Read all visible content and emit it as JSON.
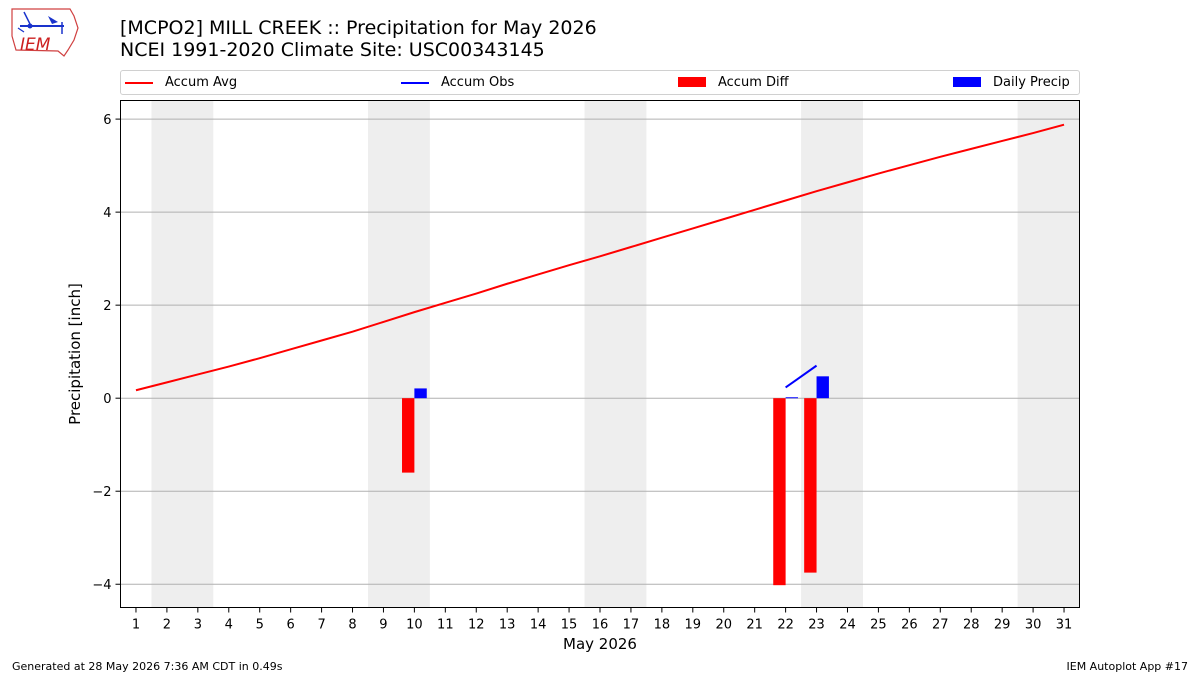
{
  "header": {
    "title_line1": "[MCPO2] MILL CREEK :: Precipitation for May 2026",
    "title_line2": "NCEI 1991-2020 Climate Site: USC00343145",
    "logo_text": "IEM"
  },
  "legend": {
    "accum_avg": "Accum Avg",
    "accum_obs": "Accum Obs",
    "accum_diff": "Accum Diff",
    "daily_precip": "Daily Precip"
  },
  "footer": {
    "left": "Generated at 28 May 2026 7:36 AM CDT in 0.49s",
    "right": "IEM Autoplot App #17"
  },
  "colors": {
    "avg": "#ff0000",
    "obs": "#0000ff",
    "diff": "#ff0000",
    "daily": "#0000ff",
    "weekend_band": "#eeeeee",
    "grid": "#b0b0b0"
  },
  "chart_data": {
    "type": "bar",
    "xlabel": "May 2026",
    "ylabel": "Precipitation [inch]",
    "xlim": [
      0.5,
      31.5
    ],
    "ylim": [
      -4.5,
      6.4
    ],
    "yticks": [
      -4,
      -2,
      0,
      2,
      4,
      6
    ],
    "ytick_labels": [
      "−4",
      "−2",
      "0",
      "2",
      "4",
      "6"
    ],
    "x_ticks": [
      "1",
      "2",
      "3",
      "4",
      "5",
      "6",
      "7",
      "8",
      "9",
      "10",
      "11",
      "12",
      "13",
      "14",
      "15",
      "16",
      "17",
      "18",
      "19",
      "20",
      "21",
      "22",
      "23",
      "24",
      "25",
      "26",
      "27",
      "28",
      "29",
      "30",
      "31"
    ],
    "grid": "horizontal",
    "legend_position": "top",
    "weekend_bands": [
      [
        2,
        3
      ],
      [
        9,
        10
      ],
      [
        16,
        17
      ],
      [
        23,
        24
      ],
      [
        30,
        31
      ]
    ],
    "series": [
      {
        "name": "Accum Avg",
        "kind": "line",
        "x": [
          1,
          2,
          3,
          4,
          5,
          6,
          7,
          8,
          9,
          10,
          11,
          12,
          13,
          14,
          15,
          16,
          17,
          18,
          19,
          20,
          21,
          22,
          23,
          24,
          25,
          26,
          27,
          28,
          29,
          30,
          31
        ],
        "values": [
          0.17,
          0.34,
          0.51,
          0.68,
          0.86,
          1.05,
          1.24,
          1.43,
          1.64,
          1.85,
          2.05,
          2.25,
          2.46,
          2.66,
          2.86,
          3.05,
          3.25,
          3.45,
          3.65,
          3.85,
          4.05,
          4.25,
          4.45,
          4.64,
          4.83,
          5.01,
          5.19,
          5.36,
          5.53,
          5.7,
          5.88
        ]
      },
      {
        "name": "Accum Obs",
        "kind": "line",
        "x": [
          22,
          23
        ],
        "values": [
          0.23,
          0.7
        ]
      },
      {
        "name": "Accum Diff",
        "kind": "bar",
        "x": [
          10,
          22,
          23
        ],
        "values": [
          -1.6,
          -4.02,
          -3.75
        ]
      },
      {
        "name": "Daily Precip",
        "kind": "bar",
        "x": [
          10,
          22,
          23
        ],
        "values": [
          0.21,
          0.02,
          0.47
        ]
      }
    ]
  }
}
